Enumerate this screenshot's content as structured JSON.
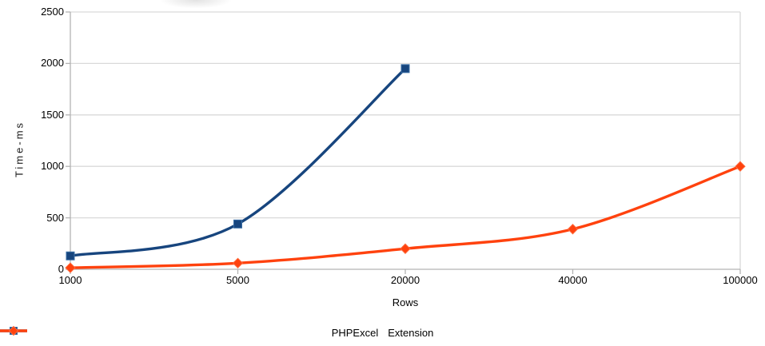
{
  "chart_data": {
    "type": "line",
    "title": "",
    "xlabel": "Rows",
    "ylabel": "Time-ms",
    "categories": [
      "1000",
      "5000",
      "20000",
      "40000",
      "100000"
    ],
    "y_ticks": [
      0,
      500,
      1000,
      1500,
      2000,
      2500
    ],
    "ylim": [
      0,
      2500
    ],
    "grid": "horizontal-only",
    "smoothed_lines": true,
    "legend_position": "bottom-center",
    "series": [
      {
        "name": "PHPExcel",
        "color": "#17457E",
        "marker_edge": "#3A6EA5",
        "marker": "square",
        "values": [
          130,
          440,
          1950
        ]
      },
      {
        "name": "Extension",
        "color": "#FF420E",
        "marker_edge": "#FF6A3C",
        "marker": "diamond",
        "values": [
          15,
          60,
          200,
          390,
          1000
        ]
      }
    ]
  },
  "colors": {
    "background": "#FFFFFF",
    "gridline": "#D9D9D9",
    "axis": "#B3B3B3",
    "text": "#000000"
  }
}
